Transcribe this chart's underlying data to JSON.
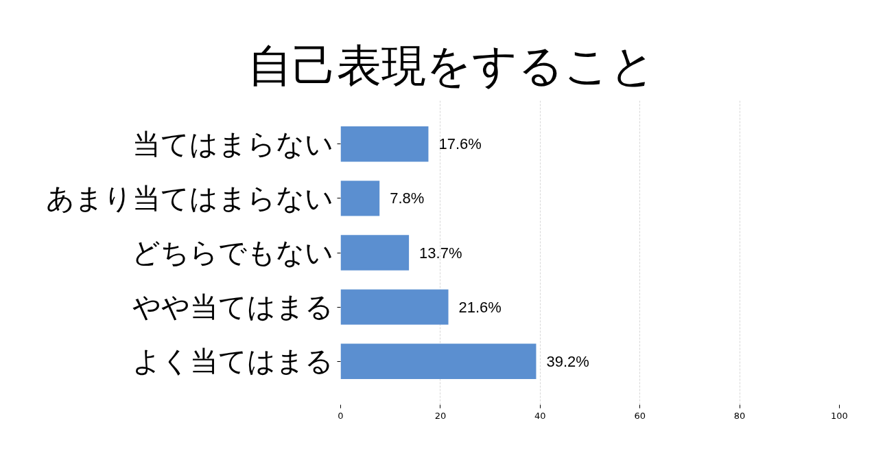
{
  "chart_data": {
    "type": "bar",
    "orientation": "horizontal",
    "title": "自己表現をすること",
    "categories": [
      "当てはまらない",
      "あまり当てはまらない",
      "どちらでもない",
      "やや当てはまる",
      "よく当てはまる"
    ],
    "values": [
      17.6,
      7.8,
      13.7,
      21.6,
      39.2
    ],
    "value_labels": [
      "17.6%",
      "7.8%",
      "13.7%",
      "21.6%",
      "39.2%"
    ],
    "color": "#5b8fd0",
    "xlim": [
      0,
      100
    ],
    "xticks": [
      0,
      20,
      40,
      60,
      80,
      100
    ],
    "grid": "x"
  }
}
